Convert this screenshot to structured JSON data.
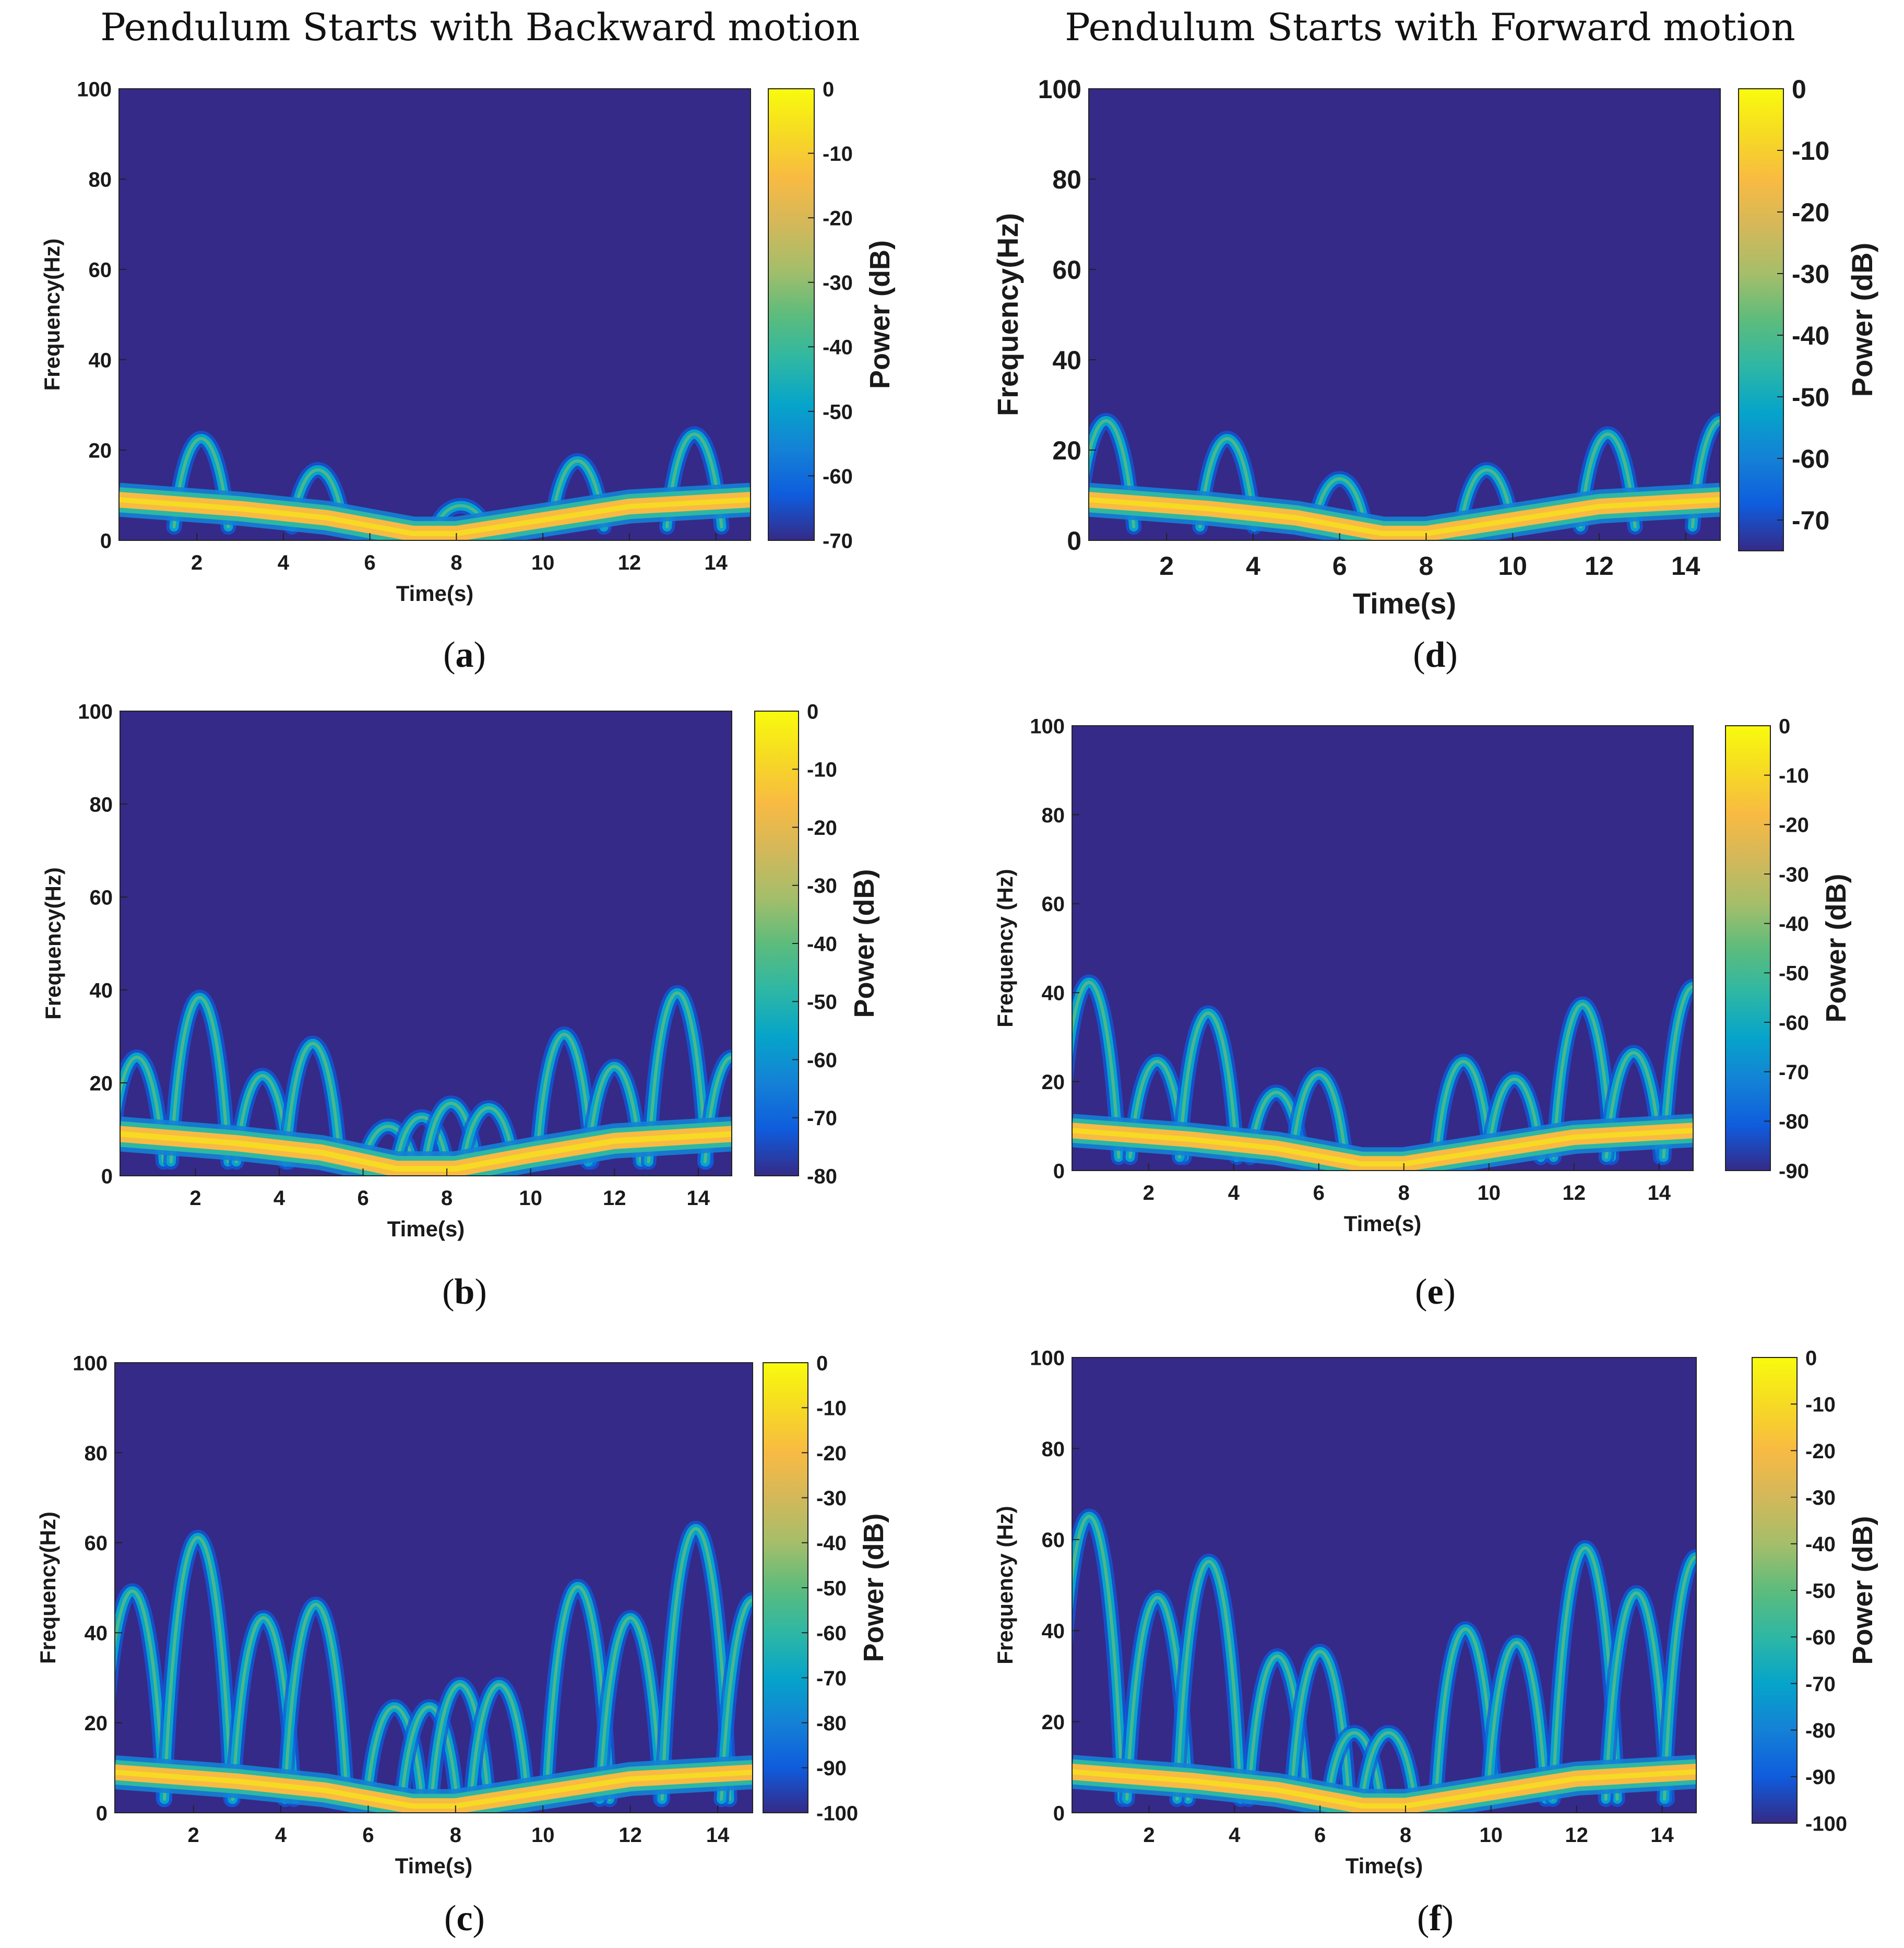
{
  "columns": {
    "left_title": "Pendulum Starts with Backward motion",
    "right_title": "Pendulum Starts with Forward motion"
  },
  "colors": {
    "background": "#352a87",
    "colormap": [
      "#352a87",
      "#0f5cdd",
      "#1481d6",
      "#06a4ca",
      "#2eb7a4",
      "#5dbc7c",
      "#a5be6a",
      "#d3b85a",
      "#f8ba43",
      "#f6da23",
      "#f9fb0e"
    ]
  },
  "chart_data": [
    {
      "id": "a",
      "caption_letter": "a",
      "type": "heatmap",
      "xlabel": "Time(s)",
      "ylabel": "Frequency(Hz)",
      "colorbar_label": "Power (dB)",
      "xlim": [
        0.2,
        14.8
      ],
      "ylim": [
        0,
        100
      ],
      "xticks": [
        2,
        4,
        6,
        8,
        10,
        12,
        14
      ],
      "yticks": [
        0,
        20,
        40,
        60,
        80,
        100
      ],
      "colorbar_range": [
        -70,
        0
      ],
      "colorbar_ticks": [
        0,
        -10,
        -20,
        -30,
        -40,
        -50,
        -60,
        -70
      ],
      "carrier": [
        [
          0.2,
          9
        ],
        [
          3,
          7
        ],
        [
          5,
          5
        ],
        [
          7,
          1.5
        ],
        [
          8,
          1.5
        ],
        [
          10,
          4.5
        ],
        [
          12,
          7.5
        ],
        [
          14.8,
          9
        ]
      ],
      "peaks": [
        [
          2.1,
          22
        ],
        [
          4.8,
          15
        ],
        [
          8.1,
          7
        ],
        [
          10.8,
          17
        ],
        [
          13.5,
          23
        ]
      ]
    },
    {
      "id": "b",
      "caption_letter": "b",
      "type": "heatmap",
      "xlabel": "Time(s)",
      "ylabel": "Frequency(Hz)",
      "colorbar_label": "Power (dB)",
      "xlim": [
        0.2,
        14.8
      ],
      "ylim": [
        0,
        100
      ],
      "xticks": [
        2,
        4,
        6,
        8,
        10,
        12,
        14
      ],
      "yticks": [
        0,
        20,
        40,
        60,
        80,
        100
      ],
      "colorbar_range": [
        -80,
        0
      ],
      "colorbar_ticks": [
        0,
        -10,
        -20,
        -30,
        -40,
        -50,
        -60,
        -70,
        -80
      ],
      "carrier": [
        [
          0.2,
          9
        ],
        [
          3,
          7
        ],
        [
          5,
          5
        ],
        [
          6.8,
          1.5
        ],
        [
          8.2,
          1.5
        ],
        [
          10,
          4.5
        ],
        [
          12,
          7.5
        ],
        [
          14.8,
          9
        ]
      ],
      "peaks": [
        [
          0.6,
          25
        ],
        [
          2.1,
          38
        ],
        [
          3.6,
          21
        ],
        [
          4.8,
          28
        ],
        [
          6.6,
          10
        ],
        [
          7.4,
          12
        ],
        [
          8.1,
          15
        ],
        [
          9.0,
          14
        ],
        [
          10.8,
          30
        ],
        [
          12.0,
          23
        ],
        [
          13.5,
          39
        ],
        [
          14.8,
          25
        ]
      ]
    },
    {
      "id": "c",
      "caption_letter": "c",
      "type": "heatmap",
      "xlabel": "Time(s)",
      "ylabel": "Frequency(Hz)",
      "colorbar_label": "Power (dB)",
      "xlim": [
        0.2,
        14.8
      ],
      "ylim": [
        0,
        100
      ],
      "xticks": [
        2,
        4,
        6,
        8,
        10,
        12,
        14
      ],
      "yticks": [
        0,
        20,
        40,
        60,
        80,
        100
      ],
      "colorbar_range": [
        -100,
        0
      ],
      "colorbar_ticks": [
        0,
        -10,
        -20,
        -30,
        -40,
        -50,
        -60,
        -70,
        -80,
        -90,
        -100
      ],
      "carrier": [
        [
          0.2,
          9
        ],
        [
          3,
          7
        ],
        [
          5,
          5
        ],
        [
          7,
          1.5
        ],
        [
          8,
          1.5
        ],
        [
          10,
          4.5
        ],
        [
          12,
          7.5
        ],
        [
          14.8,
          9
        ]
      ],
      "peaks": [
        [
          0.6,
          49
        ],
        [
          2.1,
          61
        ],
        [
          3.6,
          43
        ],
        [
          4.8,
          46
        ],
        [
          6.6,
          23
        ],
        [
          7.4,
          23
        ],
        [
          8.1,
          28
        ],
        [
          9.0,
          28
        ],
        [
          10.8,
          50
        ],
        [
          12.0,
          43
        ],
        [
          13.5,
          63
        ],
        [
          14.8,
          47
        ]
      ]
    },
    {
      "id": "d",
      "caption_letter": "d",
      "type": "heatmap",
      "xlabel": "Time(s)",
      "ylabel": "Frequency(Hz)",
      "colorbar_label": "Power (dB)",
      "xlim": [
        0.2,
        14.8
      ],
      "ylim": [
        0,
        100
      ],
      "xticks": [
        2,
        4,
        6,
        8,
        10,
        12,
        14
      ],
      "yticks": [
        0,
        20,
        40,
        60,
        80,
        100
      ],
      "colorbar_range": [
        -75,
        0
      ],
      "colorbar_ticks": [
        0,
        -10,
        -20,
        -30,
        -40,
        -50,
        -60,
        -70
      ],
      "carrier": [
        [
          0.2,
          9
        ],
        [
          3,
          7
        ],
        [
          5,
          5
        ],
        [
          7,
          1.5
        ],
        [
          8,
          1.5
        ],
        [
          10,
          4.5
        ],
        [
          12,
          7.5
        ],
        [
          14.8,
          9
        ]
      ],
      "peaks": [
        [
          0.6,
          26
        ],
        [
          3.4,
          22
        ],
        [
          6.0,
          13
        ],
        [
          9.4,
          15
        ],
        [
          12.2,
          23
        ],
        [
          14.8,
          26
        ]
      ]
    },
    {
      "id": "e",
      "caption_letter": "e",
      "type": "heatmap",
      "xlabel": "Time(s)",
      "ylabel": "Frequency (Hz)",
      "colorbar_label": "Power (dB)",
      "xlim": [
        0.2,
        14.8
      ],
      "ylim": [
        0,
        100
      ],
      "xticks": [
        2,
        4,
        6,
        8,
        10,
        12,
        14
      ],
      "yticks": [
        0,
        20,
        40,
        60,
        80,
        100
      ],
      "colorbar_range": [
        -90,
        0
      ],
      "colorbar_ticks": [
        0,
        -10,
        -20,
        -30,
        -40,
        -50,
        -60,
        -70,
        -80,
        -90
      ],
      "carrier": [
        [
          0.2,
          9
        ],
        [
          3,
          7
        ],
        [
          5,
          5
        ],
        [
          7,
          1.5
        ],
        [
          8,
          1.5
        ],
        [
          10,
          4.5
        ],
        [
          12,
          7.5
        ],
        [
          14.8,
          9
        ]
      ],
      "peaks": [
        [
          0.6,
          42
        ],
        [
          2.2,
          24
        ],
        [
          3.4,
          35
        ],
        [
          5.0,
          17
        ],
        [
          6.0,
          21
        ],
        [
          9.4,
          24
        ],
        [
          10.6,
          20
        ],
        [
          12.2,
          37
        ],
        [
          13.4,
          26
        ],
        [
          14.8,
          41
        ]
      ]
    },
    {
      "id": "f",
      "caption_letter": "f",
      "type": "heatmap",
      "xlabel": "Time(s)",
      "ylabel": "Frequency (Hz)",
      "colorbar_label": "Power (dB)",
      "xlim": [
        0.2,
        14.8
      ],
      "ylim": [
        0,
        100
      ],
      "xticks": [
        2,
        4,
        6,
        8,
        10,
        12,
        14
      ],
      "yticks": [
        0,
        20,
        40,
        60,
        80,
        100
      ],
      "colorbar_range": [
        -100,
        0
      ],
      "colorbar_ticks": [
        0,
        -10,
        -20,
        -30,
        -40,
        -50,
        -60,
        -70,
        -80,
        -90,
        -100
      ],
      "carrier": [
        [
          0.2,
          9
        ],
        [
          3,
          7
        ],
        [
          5,
          5
        ],
        [
          7,
          1.5
        ],
        [
          8,
          1.5
        ],
        [
          10,
          4.5
        ],
        [
          12,
          7.5
        ],
        [
          14.8,
          9
        ]
      ],
      "peaks": [
        [
          0.6,
          65
        ],
        [
          2.2,
          47
        ],
        [
          3.4,
          55
        ],
        [
          5.0,
          34
        ],
        [
          6.0,
          35
        ],
        [
          6.8,
          17
        ],
        [
          7.6,
          17
        ],
        [
          9.4,
          40
        ],
        [
          10.6,
          37
        ],
        [
          12.2,
          58
        ],
        [
          13.4,
          48
        ],
        [
          14.8,
          56
        ]
      ]
    }
  ]
}
